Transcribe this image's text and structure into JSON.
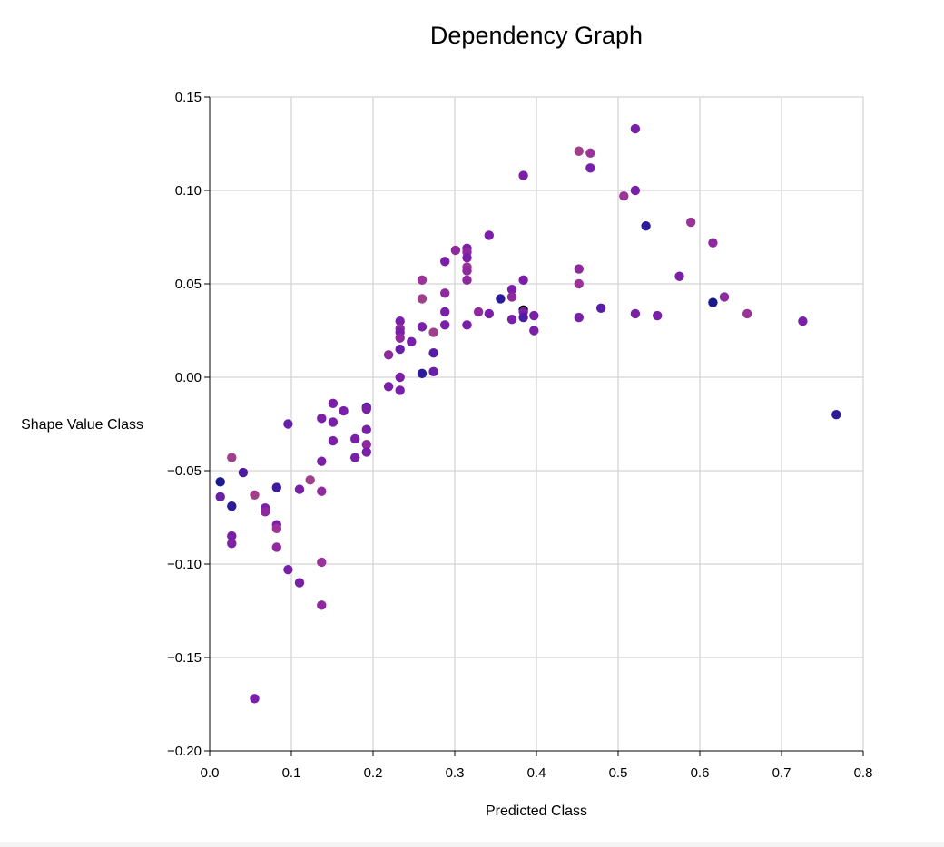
{
  "chart_data": {
    "type": "scatter",
    "title": "Dependency Graph",
    "xlabel": "Predicted Class",
    "ylabel": "Shape Value Class",
    "xlim": [
      0.0,
      0.8
    ],
    "ylim": [
      -0.2,
      0.15
    ],
    "x_ticks": [
      0.0,
      0.1,
      0.2,
      0.3,
      0.4,
      0.5,
      0.6,
      0.7,
      0.8
    ],
    "x_tick_labels": [
      "0.0",
      "0.1",
      "0.2",
      "0.3",
      "0.4",
      "0.5",
      "0.6",
      "0.7",
      "0.8"
    ],
    "y_ticks": [
      0.15,
      0.1,
      0.05,
      0.0,
      -0.05,
      -0.1,
      -0.15,
      -0.2
    ],
    "y_tick_labels": [
      "0.15",
      "0.10",
      "0.05",
      "0.00",
      "−0.05",
      "−0.10",
      "−0.15",
      "−0.20"
    ],
    "grid": true,
    "points": [
      {
        "x": 0.013,
        "y": -0.056,
        "color": "#1a1a8e"
      },
      {
        "x": 0.013,
        "y": -0.064,
        "color": "#6a1fa8"
      },
      {
        "x": 0.027,
        "y": -0.043,
        "color": "#a0408a"
      },
      {
        "x": 0.027,
        "y": -0.069,
        "color": "#2c1a9a"
      },
      {
        "x": 0.027,
        "y": -0.085,
        "color": "#7a20a8"
      },
      {
        "x": 0.027,
        "y": -0.089,
        "color": "#7e22a6"
      },
      {
        "x": 0.041,
        "y": -0.051,
        "color": "#4e1ca2"
      },
      {
        "x": 0.055,
        "y": -0.063,
        "color": "#a0408a"
      },
      {
        "x": 0.055,
        "y": -0.172,
        "color": "#7a20a8"
      },
      {
        "x": 0.068,
        "y": -0.07,
        "color": "#7a20a8"
      },
      {
        "x": 0.068,
        "y": -0.072,
        "color": "#8e2a9e"
      },
      {
        "x": 0.082,
        "y": -0.059,
        "color": "#3e1a9e"
      },
      {
        "x": 0.082,
        "y": -0.079,
        "color": "#7a20a8"
      },
      {
        "x": 0.082,
        "y": -0.081,
        "color": "#9a3498"
      },
      {
        "x": 0.082,
        "y": -0.091,
        "color": "#8e2a9e"
      },
      {
        "x": 0.096,
        "y": -0.025,
        "color": "#6a1fa8"
      },
      {
        "x": 0.096,
        "y": -0.103,
        "color": "#7a20a8"
      },
      {
        "x": 0.11,
        "y": -0.06,
        "color": "#7a20a8"
      },
      {
        "x": 0.11,
        "y": -0.11,
        "color": "#7a20a8"
      },
      {
        "x": 0.123,
        "y": -0.055,
        "color": "#a0408a"
      },
      {
        "x": 0.137,
        "y": -0.022,
        "color": "#7a20a8"
      },
      {
        "x": 0.137,
        "y": -0.045,
        "color": "#7a20a8"
      },
      {
        "x": 0.137,
        "y": -0.061,
        "color": "#8e2a9e"
      },
      {
        "x": 0.137,
        "y": -0.099,
        "color": "#9a3498"
      },
      {
        "x": 0.137,
        "y": -0.122,
        "color": "#8e2a9e"
      },
      {
        "x": 0.151,
        "y": -0.014,
        "color": "#7a20a8"
      },
      {
        "x": 0.151,
        "y": -0.024,
        "color": "#7a20a8"
      },
      {
        "x": 0.151,
        "y": -0.034,
        "color": "#7a20a8"
      },
      {
        "x": 0.164,
        "y": -0.018,
        "color": "#7a20a8"
      },
      {
        "x": 0.178,
        "y": -0.033,
        "color": "#7a20a8"
      },
      {
        "x": 0.178,
        "y": -0.043,
        "color": "#7a20a8"
      },
      {
        "x": 0.192,
        "y": -0.016,
        "color": "#4e1ca2"
      },
      {
        "x": 0.192,
        "y": -0.017,
        "color": "#7a20a8"
      },
      {
        "x": 0.192,
        "y": -0.028,
        "color": "#7a20a8"
      },
      {
        "x": 0.192,
        "y": -0.036,
        "color": "#8e2a9e"
      },
      {
        "x": 0.192,
        "y": -0.04,
        "color": "#7a20a8"
      },
      {
        "x": 0.219,
        "y": 0.012,
        "color": "#8e2a9e"
      },
      {
        "x": 0.219,
        "y": -0.005,
        "color": "#7a20a8"
      },
      {
        "x": 0.233,
        "y": 0.03,
        "color": "#7a20a8"
      },
      {
        "x": 0.233,
        "y": 0.026,
        "color": "#8e2a9e"
      },
      {
        "x": 0.233,
        "y": 0.024,
        "color": "#7a20a8"
      },
      {
        "x": 0.233,
        "y": 0.021,
        "color": "#8e2a9e"
      },
      {
        "x": 0.233,
        "y": 0.015,
        "color": "#6a1fa8"
      },
      {
        "x": 0.233,
        "y": 0.0,
        "color": "#7a20a8"
      },
      {
        "x": 0.233,
        "y": -0.007,
        "color": "#7a20a8"
      },
      {
        "x": 0.247,
        "y": 0.019,
        "color": "#7a20a8"
      },
      {
        "x": 0.26,
        "y": 0.052,
        "color": "#9a3498"
      },
      {
        "x": 0.26,
        "y": 0.042,
        "color": "#a0408a"
      },
      {
        "x": 0.26,
        "y": 0.027,
        "color": "#7a20a8"
      },
      {
        "x": 0.26,
        "y": 0.002,
        "color": "#2c1a9a"
      },
      {
        "x": 0.274,
        "y": 0.024,
        "color": "#a0408a"
      },
      {
        "x": 0.274,
        "y": 0.013,
        "color": "#5a1ca6"
      },
      {
        "x": 0.274,
        "y": 0.003,
        "color": "#6a1fa8"
      },
      {
        "x": 0.288,
        "y": 0.062,
        "color": "#7a20a8"
      },
      {
        "x": 0.288,
        "y": 0.045,
        "color": "#8e2a9e"
      },
      {
        "x": 0.288,
        "y": 0.035,
        "color": "#7a20a8"
      },
      {
        "x": 0.288,
        "y": 0.028,
        "color": "#7a20a8"
      },
      {
        "x": 0.301,
        "y": 0.068,
        "color": "#8e2a9e"
      },
      {
        "x": 0.315,
        "y": 0.069,
        "color": "#7a20a8"
      },
      {
        "x": 0.315,
        "y": 0.067,
        "color": "#8e2a9e"
      },
      {
        "x": 0.315,
        "y": 0.064,
        "color": "#7a20a8"
      },
      {
        "x": 0.315,
        "y": 0.059,
        "color": "#9a3498"
      },
      {
        "x": 0.315,
        "y": 0.057,
        "color": "#8e2a9e"
      },
      {
        "x": 0.315,
        "y": 0.052,
        "color": "#8e2a9e"
      },
      {
        "x": 0.315,
        "y": 0.028,
        "color": "#7a20a8"
      },
      {
        "x": 0.329,
        "y": 0.035,
        "color": "#8e2a9e"
      },
      {
        "x": 0.342,
        "y": 0.076,
        "color": "#7a20a8"
      },
      {
        "x": 0.342,
        "y": 0.034,
        "color": "#7a20a8"
      },
      {
        "x": 0.356,
        "y": 0.042,
        "color": "#2c1a9a"
      },
      {
        "x": 0.37,
        "y": 0.047,
        "color": "#7a20a8"
      },
      {
        "x": 0.37,
        "y": 0.043,
        "color": "#8e2a9e"
      },
      {
        "x": 0.37,
        "y": 0.031,
        "color": "#7a20a8"
      },
      {
        "x": 0.384,
        "y": 0.108,
        "color": "#7a20a8"
      },
      {
        "x": 0.384,
        "y": 0.052,
        "color": "#7a20a8"
      },
      {
        "x": 0.384,
        "y": 0.036,
        "color": "#000000"
      },
      {
        "x": 0.384,
        "y": 0.035,
        "color": "#7a20a8"
      },
      {
        "x": 0.384,
        "y": 0.032,
        "color": "#4e1ca2"
      },
      {
        "x": 0.397,
        "y": 0.033,
        "color": "#7a20a8"
      },
      {
        "x": 0.397,
        "y": 0.025,
        "color": "#7a20a8"
      },
      {
        "x": 0.452,
        "y": 0.121,
        "color": "#a0408a"
      },
      {
        "x": 0.452,
        "y": 0.058,
        "color": "#8e2a9e"
      },
      {
        "x": 0.452,
        "y": 0.05,
        "color": "#9a3498"
      },
      {
        "x": 0.452,
        "y": 0.032,
        "color": "#7a20a8"
      },
      {
        "x": 0.466,
        "y": 0.12,
        "color": "#9a3498"
      },
      {
        "x": 0.466,
        "y": 0.112,
        "color": "#7a20a8"
      },
      {
        "x": 0.479,
        "y": 0.037,
        "color": "#5a1ca6"
      },
      {
        "x": 0.507,
        "y": 0.097,
        "color": "#9a3498"
      },
      {
        "x": 0.521,
        "y": 0.133,
        "color": "#7a20a8"
      },
      {
        "x": 0.521,
        "y": 0.1,
        "color": "#7a20a8"
      },
      {
        "x": 0.521,
        "y": 0.034,
        "color": "#7a20a8"
      },
      {
        "x": 0.534,
        "y": 0.081,
        "color": "#2c1a9a"
      },
      {
        "x": 0.548,
        "y": 0.033,
        "color": "#7a20a8"
      },
      {
        "x": 0.575,
        "y": 0.054,
        "color": "#7a20a8"
      },
      {
        "x": 0.589,
        "y": 0.083,
        "color": "#9a3498"
      },
      {
        "x": 0.616,
        "y": 0.072,
        "color": "#8e2a9e"
      },
      {
        "x": 0.616,
        "y": 0.04,
        "color": "#1a1a8e"
      },
      {
        "x": 0.63,
        "y": 0.043,
        "color": "#8e2a9e"
      },
      {
        "x": 0.658,
        "y": 0.034,
        "color": "#9a3498"
      },
      {
        "x": 0.726,
        "y": 0.03,
        "color": "#7a20a8"
      },
      {
        "x": 0.767,
        "y": -0.02,
        "color": "#2c1a9a"
      }
    ]
  }
}
